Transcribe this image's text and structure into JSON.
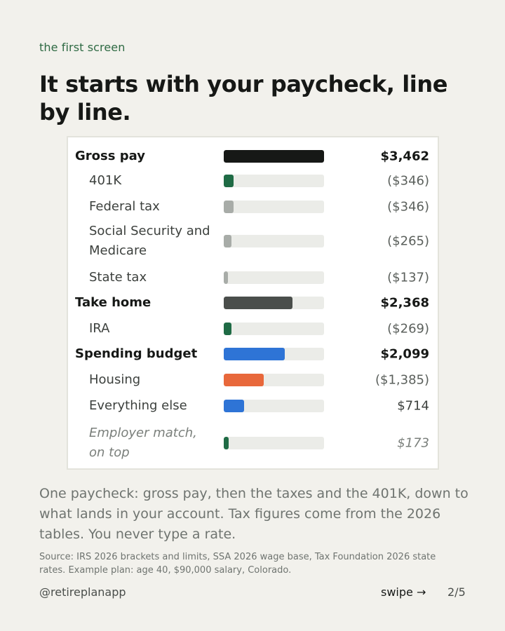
{
  "eyebrow": "the first screen",
  "headline": "It starts with your paycheck, line by line.",
  "colors": {
    "black": "#161816",
    "green": "#1f6b45",
    "gray": "#a8aca8",
    "dark_gray": "#4a4e4b",
    "blue": "#2e74d6",
    "orange": "#e8683b"
  },
  "rows": [
    {
      "label": "Gross pay",
      "amount": "$3,462",
      "value": 3462,
      "style": "main",
      "color": "#161816"
    },
    {
      "label": "401K",
      "amount": "($346)",
      "value": 346,
      "style": "sub",
      "color": "#1f6b45"
    },
    {
      "label": "Federal tax",
      "amount": "($346)",
      "value": 346,
      "style": "sub",
      "color": "#a8aca8"
    },
    {
      "label": "Social Security and Medicare",
      "amount": "($265)",
      "value": 265,
      "style": "sub",
      "color": "#a8aca8"
    },
    {
      "label": "State tax",
      "amount": "($137)",
      "value": 137,
      "style": "sub",
      "color": "#a8aca8"
    },
    {
      "label": "Take home",
      "amount": "$2,368",
      "value": 2368,
      "style": "main",
      "color": "#4a4e4b"
    },
    {
      "label": "IRA",
      "amount": "($269)",
      "value": 269,
      "style": "sub",
      "color": "#1f6b45"
    },
    {
      "label": "Spending budget",
      "amount": "$2,099",
      "value": 2099,
      "style": "main",
      "color": "#2e74d6"
    },
    {
      "label": "Housing",
      "amount": "($1,385)",
      "value": 1385,
      "style": "sub",
      "color": "#e8683b"
    },
    {
      "label": "Everything else",
      "amount": "$714",
      "value": 714,
      "style": "sub plain",
      "color": "#2e74d6"
    },
    {
      "label": "Employer match, on top",
      "amount": "$173",
      "value": 173,
      "style": "sub italic",
      "color": "#1f6b45"
    }
  ],
  "body_text": "One paycheck: gross pay, then the taxes and the 401K, down to what lands in your account. Tax figures come from the 2026 tables. You never type a rate.",
  "source": "Source: IRS 2026 brackets and limits, SSA 2026 wage base, Tax Foundation 2026 state rates. Example plan: age 40, $90,000 salary, Colorado.",
  "handle": "@retireplanapp",
  "swipe": "swipe →",
  "page": "2/5"
}
